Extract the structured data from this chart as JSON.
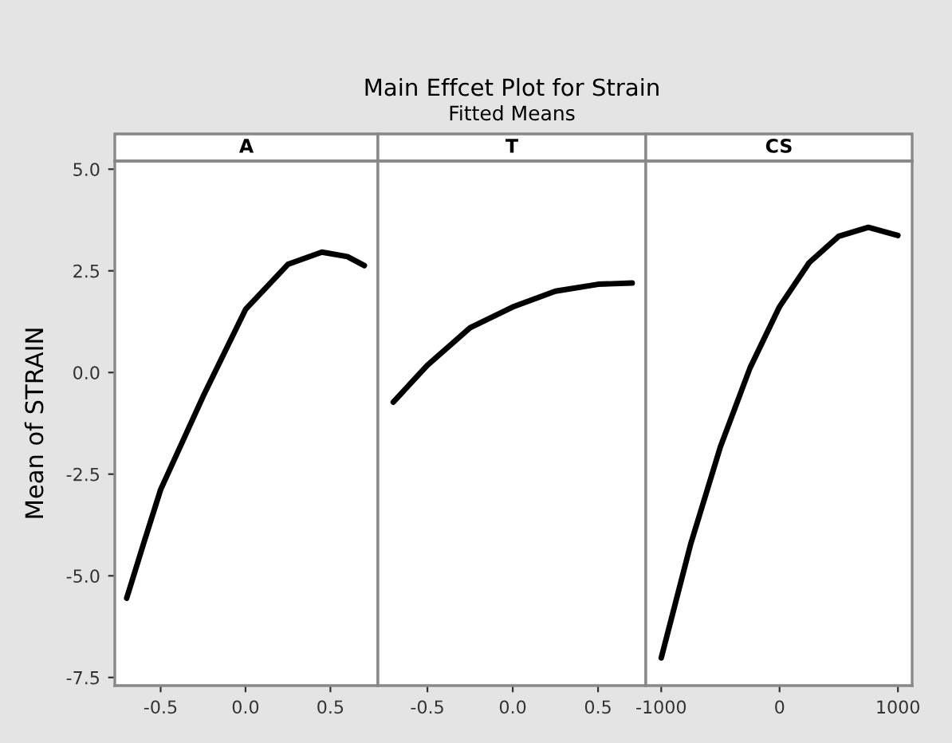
{
  "chart_data": [
    {
      "type": "line",
      "ylabel": "Mean of STRAIN",
      "annotations": [
        "A"
      ],
      "x": [
        -0.7,
        -0.6,
        -0.5,
        -0.25,
        0,
        0.25,
        0.45,
        0.6,
        0.7
      ],
      "series": [
        {
          "color": "#000000",
          "values": [
            -5.55,
            -4.2,
            -2.88,
            -0.59,
            1.55,
            2.66,
            2.96,
            2.85,
            2.63
          ]
        }
      ],
      "xlim": [
        -0.77,
        0.78
      ],
      "xticks": [
        -0.5,
        {
          "value": 0,
          "label": "0.0"
        },
        0.5
      ],
      "ylim": [
        -7.7,
        5.2
      ],
      "yticks": [
        -7.5,
        {
          "value": -5,
          "label": "-5.0"
        },
        -2.5,
        {
          "value": 0,
          "label": "0.0"
        },
        2.5,
        {
          "value": 5,
          "label": "5.0"
        }
      ],
      "grid": false,
      "legend": false
    },
    {
      "type": "line",
      "title": "Main Effcet Plot for Strain",
      "subtitle": "Fitted Means",
      "annotations": [
        "T"
      ],
      "x": [
        -0.7,
        -0.5,
        -0.25,
        0,
        0.25,
        0.5,
        0.7
      ],
      "series": [
        {
          "color": "#000000",
          "values": [
            -0.73,
            0.18,
            1.1,
            1.61,
            2.0,
            2.17,
            2.2
          ]
        }
      ],
      "xlim": [
        -0.79,
        0.78
      ],
      "xticks": [
        -0.5,
        {
          "value": 0,
          "label": "0.0"
        },
        0.5
      ],
      "ylim": [
        -7.7,
        5.2
      ],
      "tick_labels": "x",
      "grid": false,
      "legend": false
    },
    {
      "type": "line",
      "annotations": [
        "CS"
      ],
      "x": [
        -1000,
        -750,
        -500,
        -250,
        0,
        250,
        500,
        750,
        1000
      ],
      "series": [
        {
          "color": "#000000",
          "values": [
            -7.02,
            -4.21,
            -1.83,
            0.11,
            1.62,
            2.7,
            3.35,
            3.57,
            3.37
          ]
        }
      ],
      "xlim": [
        -1130,
        1120
      ],
      "xticks": [
        -1000,
        0,
        1000
      ],
      "ylim": [
        -7.7,
        5.2
      ],
      "tick_labels": "x",
      "grid": false,
      "legend": false
    }
  ]
}
